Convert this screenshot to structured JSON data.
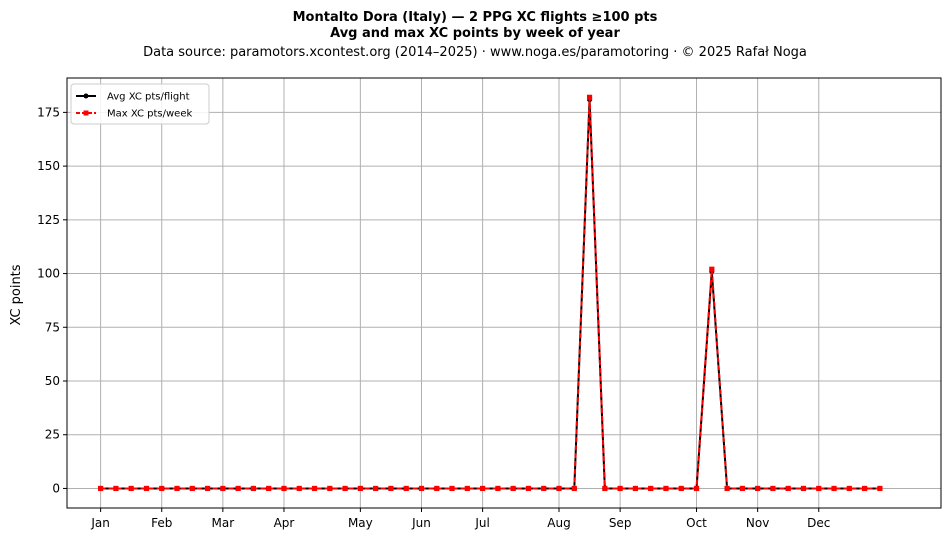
{
  "chart_data": {
    "type": "line",
    "title": "Montalto Dora (Italy)  —  2 PPG XC flights ≥100 pts",
    "subtitle": "Avg and max XC points by week of year",
    "source": "Data source: paramotors.xcontest.org (2014–2025)  ·  www.noga.es/paramotoring  ·  © 2025 Rafał Noga",
    "xlabel": "",
    "ylabel": "XC points",
    "x": [
      1,
      2,
      3,
      4,
      5,
      6,
      7,
      8,
      9,
      10,
      11,
      12,
      13,
      14,
      15,
      16,
      17,
      18,
      19,
      20,
      21,
      22,
      23,
      24,
      25,
      26,
      27,
      28,
      29,
      30,
      31,
      32,
      33,
      34,
      35,
      36,
      37,
      38,
      39,
      40,
      41,
      42,
      43,
      44,
      45,
      46,
      47,
      48,
      49,
      50,
      51,
      52
    ],
    "xlim": [
      -1.2,
      56
    ],
    "ylim": [
      -9.1,
      191
    ],
    "x_ticks": [
      {
        "label": "Jan",
        "x": 1
      },
      {
        "label": "Feb",
        "x": 5
      },
      {
        "label": "Mar",
        "x": 9
      },
      {
        "label": "Apr",
        "x": 13
      },
      {
        "label": "May",
        "x": 18
      },
      {
        "label": "Jun",
        "x": 22
      },
      {
        "label": "Jul",
        "x": 26
      },
      {
        "label": "Aug",
        "x": 31
      },
      {
        "label": "Sep",
        "x": 35
      },
      {
        "label": "Oct",
        "x": 40
      },
      {
        "label": "Nov",
        "x": 44
      },
      {
        "label": "Dec",
        "x": 48
      }
    ],
    "y_ticks": [
      0,
      25,
      50,
      75,
      100,
      125,
      150,
      175
    ],
    "grid": true,
    "legend_position": "top-left",
    "series": [
      {
        "name": "Avg XC pts/flight",
        "color": "#000000",
        "style": "solid",
        "marker": "circle",
        "values": [
          0,
          0,
          0,
          0,
          0,
          0,
          0,
          0,
          0,
          0,
          0,
          0,
          0,
          0,
          0,
          0,
          0,
          0,
          0,
          0,
          0,
          0,
          0,
          0,
          0,
          0,
          0,
          0,
          0,
          0,
          0,
          0,
          181,
          0,
          0,
          0,
          0,
          0,
          0,
          0,
          101,
          0,
          0,
          0,
          0,
          0,
          0,
          0,
          0,
          0,
          0,
          0
        ]
      },
      {
        "name": "Max XC pts/week",
        "color": "#ff0000",
        "style": "dashed",
        "marker": "square",
        "values": [
          0,
          0,
          0,
          0,
          0,
          0,
          0,
          0,
          0,
          0,
          0,
          0,
          0,
          0,
          0,
          0,
          0,
          0,
          0,
          0,
          0,
          0,
          0,
          0,
          0,
          0,
          0,
          0,
          0,
          0,
          0,
          0,
          182,
          0,
          0,
          0,
          0,
          0,
          0,
          0,
          102,
          0,
          0,
          0,
          0,
          0,
          0,
          0,
          0,
          0,
          0,
          0
        ]
      }
    ]
  }
}
